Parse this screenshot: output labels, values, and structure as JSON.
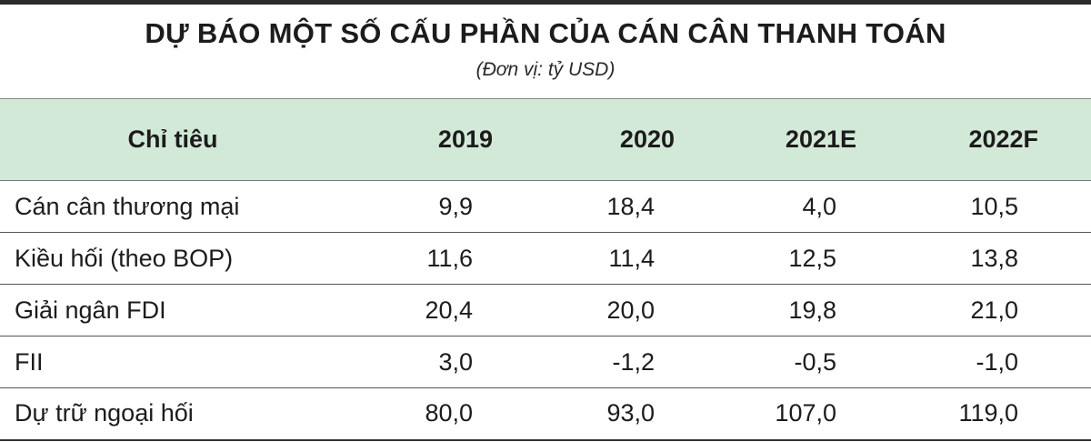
{
  "title": "DỰ BÁO MỘT SỐ CẤU PHẦN CỦA CÁN CÂN THANH TOÁN",
  "subtitle": "(Đơn vị: tỷ USD)",
  "table": {
    "headers": [
      "Chỉ tiêu",
      "2019",
      "2020",
      "2021E",
      "2022F"
    ],
    "rows": [
      [
        "Cán cân thương mại",
        "9,9",
        "18,4",
        "4,0",
        "10,5"
      ],
      [
        "Kiều hối (theo BOP)",
        "11,6",
        "11,4",
        "12,5",
        "13,8"
      ],
      [
        "Giải ngân FDI",
        "20,4",
        "20,0",
        "19,8",
        "21,0"
      ],
      [
        "FII",
        "3,0",
        "-1,2",
        "-0,5",
        "-1,0"
      ],
      [
        "Dự trữ ngoại hối",
        "80,0",
        "93,0",
        "107,0",
        "119,0"
      ]
    ]
  },
  "colors": {
    "header_background": "#d3e9d8",
    "top_rule": "#2b2b2b"
  }
}
